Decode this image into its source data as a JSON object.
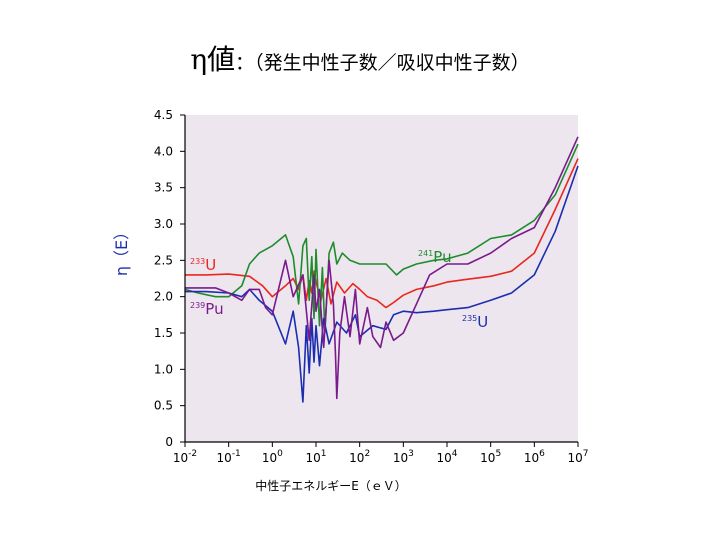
{
  "slide": {
    "title_symbol": "η値",
    "title_rest": "：（発生中性子数／吸収中性子数）"
  },
  "chart_data": {
    "type": "line",
    "title": "η値：（発生中性子数／吸収中性子数）",
    "xlabel": "中性子エネルギーE（ｅＶ）",
    "ylabel": "η（E）",
    "xscale": "log",
    "xlim": [
      0.01,
      10000000
    ],
    "ylim": [
      0,
      4.5
    ],
    "xticks": [
      0.01,
      0.1,
      1,
      10,
      100,
      1000,
      10000,
      100000,
      1000000,
      10000000
    ],
    "xtick_labels": [
      {
        "base": "10",
        "exp": "-2"
      },
      {
        "base": "10",
        "exp": "-1"
      },
      {
        "base": "10",
        "exp": "0"
      },
      {
        "base": "10",
        "exp": "1"
      },
      {
        "base": "10",
        "exp": "2"
      },
      {
        "base": "10",
        "exp": "3"
      },
      {
        "base": "10",
        "exp": "4"
      },
      {
        "base": "10",
        "exp": "5"
      },
      {
        "base": "10",
        "exp": "6"
      },
      {
        "base": "10",
        "exp": "7"
      }
    ],
    "yticks": [
      0,
      0.5,
      1.0,
      1.5,
      2.0,
      2.5,
      3.0,
      3.5,
      4.0,
      4.5
    ],
    "ytick_labels": [
      "0",
      "0.5",
      "1.0",
      "1.5",
      "2.0",
      "2.5",
      "3.0",
      "3.5",
      "4.0",
      "4.5"
    ],
    "grid": false,
    "colors": {
      "plot_bg": "#ede6ee",
      "axis": "#000000"
    },
    "series": [
      {
        "name": "233U",
        "label_base": "U",
        "label_sup": "233",
        "color": "#e8281e",
        "points": [
          [
            0.01,
            2.3
          ],
          [
            0.03,
            2.3
          ],
          [
            0.1,
            2.31
          ],
          [
            0.3,
            2.28
          ],
          [
            0.6,
            2.15
          ],
          [
            1,
            2.0
          ],
          [
            2,
            2.15
          ],
          [
            3,
            2.25
          ],
          [
            4,
            2.1
          ],
          [
            5,
            2.3
          ],
          [
            6,
            1.95
          ],
          [
            7,
            2.22
          ],
          [
            8,
            2.05
          ],
          [
            9,
            2.35
          ],
          [
            10,
            2.2
          ],
          [
            13,
            1.95
          ],
          [
            17,
            2.25
          ],
          [
            22,
            1.9
          ],
          [
            30,
            2.2
          ],
          [
            45,
            2.05
          ],
          [
            70,
            2.18
          ],
          [
            100,
            2.1
          ],
          [
            150,
            2.0
          ],
          [
            250,
            1.95
          ],
          [
            400,
            1.85
          ],
          [
            600,
            1.92
          ],
          [
            1000,
            2.02
          ],
          [
            2000,
            2.1
          ],
          [
            5000,
            2.15
          ],
          [
            10000,
            2.2
          ],
          [
            30000,
            2.24
          ],
          [
            100000,
            2.28
          ],
          [
            300000,
            2.35
          ],
          [
            1000000,
            2.6
          ],
          [
            3000000,
            3.2
          ],
          [
            10000000,
            3.9
          ]
        ]
      },
      {
        "name": "241Pu",
        "label_base": "Pu",
        "label_sup": "241",
        "color": "#1e8c2d",
        "points": [
          [
            0.01,
            2.1
          ],
          [
            0.02,
            2.05
          ],
          [
            0.05,
            2.0
          ],
          [
            0.1,
            2.0
          ],
          [
            0.2,
            2.15
          ],
          [
            0.3,
            2.45
          ],
          [
            0.5,
            2.6
          ],
          [
            1,
            2.7
          ],
          [
            2,
            2.85
          ],
          [
            3,
            2.55
          ],
          [
            4,
            1.9
          ],
          [
            5,
            2.7
          ],
          [
            6,
            2.8
          ],
          [
            7,
            1.95
          ],
          [
            8,
            2.55
          ],
          [
            9,
            1.7
          ],
          [
            10,
            2.65
          ],
          [
            12,
            1.6
          ],
          [
            14,
            2.4
          ],
          [
            16,
            1.5
          ],
          [
            20,
            2.6
          ],
          [
            25,
            2.75
          ],
          [
            30,
            2.45
          ],
          [
            40,
            2.6
          ],
          [
            60,
            2.5
          ],
          [
            100,
            2.45
          ],
          [
            200,
            2.45
          ],
          [
            400,
            2.45
          ],
          [
            700,
            2.3
          ],
          [
            1000,
            2.38
          ],
          [
            2000,
            2.45
          ],
          [
            5000,
            2.5
          ],
          [
            10000,
            2.52
          ],
          [
            30000,
            2.6
          ],
          [
            100000,
            2.8
          ],
          [
            300000,
            2.85
          ],
          [
            1000000,
            3.05
          ],
          [
            3000000,
            3.4
          ],
          [
            10000000,
            4.1
          ]
        ]
      },
      {
        "name": "235U",
        "label_base": "U",
        "label_sup": "235",
        "color": "#1c2eb0",
        "points": [
          [
            0.01,
            2.07
          ],
          [
            0.03,
            2.07
          ],
          [
            0.1,
            2.05
          ],
          [
            0.2,
            2.0
          ],
          [
            0.3,
            2.1
          ],
          [
            0.5,
            1.95
          ],
          [
            1,
            1.8
          ],
          [
            2,
            1.35
          ],
          [
            3,
            1.8
          ],
          [
            4,
            1.3
          ],
          [
            5,
            0.55
          ],
          [
            6,
            1.6
          ],
          [
            7,
            0.95
          ],
          [
            8,
            1.7
          ],
          [
            9,
            1.1
          ],
          [
            10,
            1.6
          ],
          [
            12,
            1.05
          ],
          [
            15,
            1.7
          ],
          [
            20,
            1.35
          ],
          [
            30,
            1.65
          ],
          [
            50,
            1.5
          ],
          [
            80,
            1.75
          ],
          [
            100,
            1.45
          ],
          [
            200,
            1.6
          ],
          [
            400,
            1.55
          ],
          [
            600,
            1.75
          ],
          [
            1000,
            1.8
          ],
          [
            2000,
            1.78
          ],
          [
            5000,
            1.8
          ],
          [
            10000,
            1.82
          ],
          [
            30000,
            1.85
          ],
          [
            100000,
            1.95
          ],
          [
            300000,
            2.05
          ],
          [
            1000000,
            2.3
          ],
          [
            3000000,
            2.9
          ],
          [
            10000000,
            3.8
          ]
        ]
      },
      {
        "name": "239Pu",
        "label_base": "Pu",
        "label_sup": "239",
        "color": "#7a1a8c",
        "points": [
          [
            0.01,
            2.12
          ],
          [
            0.05,
            2.12
          ],
          [
            0.1,
            2.05
          ],
          [
            0.2,
            1.95
          ],
          [
            0.3,
            2.1
          ],
          [
            0.5,
            2.1
          ],
          [
            0.7,
            1.85
          ],
          [
            1,
            1.75
          ],
          [
            2,
            2.5
          ],
          [
            3,
            2.0
          ],
          [
            5,
            2.3
          ],
          [
            7,
            1.4
          ],
          [
            9,
            2.3
          ],
          [
            10,
            1.8
          ],
          [
            12,
            2.1
          ],
          [
            15,
            1.3
          ],
          [
            20,
            2.5
          ],
          [
            25,
            1.9
          ],
          [
            28,
            1.2
          ],
          [
            30,
            0.6
          ],
          [
            35,
            1.5
          ],
          [
            45,
            2.0
          ],
          [
            60,
            1.45
          ],
          [
            80,
            2.1
          ],
          [
            100,
            1.35
          ],
          [
            150,
            1.85
          ],
          [
            200,
            1.45
          ],
          [
            300,
            1.3
          ],
          [
            400,
            1.65
          ],
          [
            600,
            1.4
          ],
          [
            1000,
            1.5
          ],
          [
            2000,
            1.9
          ],
          [
            4000,
            2.3
          ],
          [
            10000,
            2.45
          ],
          [
            30000,
            2.45
          ],
          [
            100000,
            2.6
          ],
          [
            300000,
            2.8
          ],
          [
            1000000,
            2.95
          ],
          [
            3000000,
            3.5
          ],
          [
            10000000,
            4.2
          ]
        ]
      }
    ]
  }
}
